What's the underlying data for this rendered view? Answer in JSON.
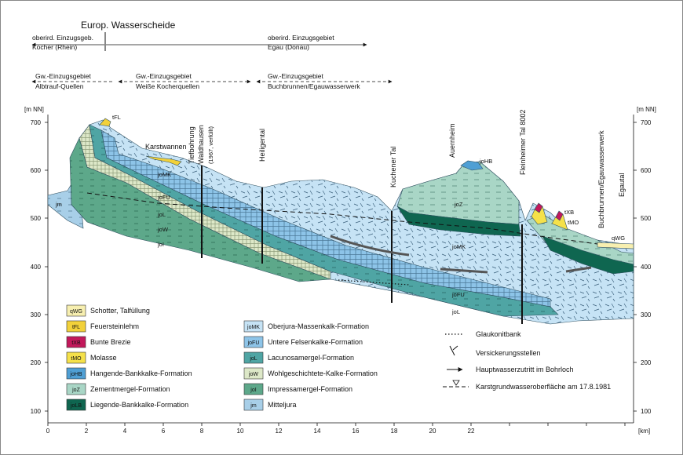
{
  "header": {
    "watershed_title": "Europ. Wasserscheide",
    "surface_left_1": "oberird. Einzugsgeb.",
    "surface_left_2": "Kocher (Rhein)",
    "surface_right_1": "oberird. Einzugsgebiet",
    "surface_right_2": "Egau (Donau)",
    "gw1_1": "Gw.-Einzugsgebiet",
    "gw1_2": "Albtrauf-Quellen",
    "gw2_1": "Gw.-Einzugsgebiet",
    "gw2_2": "Weiße Kocherquellen",
    "gw3_1": "Gw.-Einzugsgebiet",
    "gw3_2": "Buchbrunnen/Egauwasserwerk"
  },
  "axes": {
    "unit_left": "[m NN]",
    "unit_right": "[m NN]",
    "unit_x": "[km]",
    "y_ticks": [
      "700",
      "600",
      "500",
      "400",
      "300",
      "200",
      "100"
    ],
    "x_ticks": [
      "0",
      "2",
      "4",
      "6",
      "8",
      "10",
      "12",
      "14",
      "16",
      "18",
      "20",
      "22"
    ]
  },
  "sites": {
    "karstwannen": "Karstwannen",
    "tiefbohrung_1": "Tiefbohrung",
    "tiefbohrung_2": "Waldhausen",
    "tiefbohrung_3": "(1967, verfüllt)",
    "heiligental": "Heiligental",
    "kuchener": "Kuchener Tal",
    "auernheim": "Auernheim",
    "fleinheimer": "Fleinheimer Tal 8002",
    "buchbrunnen": "Buchbrunnen/Egauwasserwerk",
    "egautal": "Egautal"
  },
  "unit_labels": {
    "tFL": "tFL",
    "jm": "jm",
    "joMK1": "joMK",
    "joFU1": "joFU",
    "joL1": "joL",
    "joW1": "joW",
    "joI1": "joI",
    "joHB": "joHB",
    "joZ": "joZ",
    "joMK2": "joMK",
    "joFU2": "joFU",
    "joL2": "joL",
    "tXB": "tXB",
    "tMO": "tMO",
    "qWG": "qWG"
  },
  "legend": [
    {
      "code": "qWG",
      "label": "Schotter, Talfüllung",
      "color": "#f7efb0",
      "text": "#111"
    },
    {
      "code": "tFL",
      "label": "Feuersteinlehm",
      "color": "#f2d13a",
      "text": "#111"
    },
    {
      "code": "tXB",
      "label": "Bunte Brezie",
      "color": "#c2185b",
      "text": "#111"
    },
    {
      "code": "tMO",
      "label": "Molasse",
      "color": "#f5e14a",
      "text": "#111"
    },
    {
      "code": "joHB",
      "label": "Hangende-Bankkalke-Formation",
      "color": "#4f9fd4",
      "text": "#111"
    },
    {
      "code": "joZ",
      "label": "Zementmergel-Formation",
      "color": "#a9d6c6",
      "text": "#111"
    },
    {
      "code": "joLB",
      "label": "Liegende-Bankkalke-Formation",
      "color": "#0f6650",
      "text": "#111"
    },
    {
      "code": "joMK",
      "label": "Oberjura-Massenkalk-Formation",
      "color": "#c6e3f5",
      "text": "#111"
    },
    {
      "code": "joFU",
      "label": "Untere Felsenkalke-Formation",
      "color": "#8dc4e8",
      "text": "#111"
    },
    {
      "code": "joL",
      "label": "Lacunosamergel-Formation",
      "color": "#4fa5a4",
      "text": "#111"
    },
    {
      "code": "joW",
      "label": "Wohlgeschichtete-Kalke-Formation",
      "color": "#dde8c8",
      "text": "#111"
    },
    {
      "code": "joI",
      "label": "Impressamergel-Formation",
      "color": "#5da88a",
      "text": "#111"
    },
    {
      "code": "jm",
      "label": "Mitteljura",
      "color": "#a8cfe8",
      "text": "#111"
    }
  ],
  "symbols": [
    {
      "key": "glaukonit",
      "label": "Glaukonitbank"
    },
    {
      "key": "versickerung",
      "label": "Versickerungsstellen"
    },
    {
      "key": "hauptwasser",
      "label": "Hauptwasserzutritt im Bohrloch"
    },
    {
      "key": "karstgw",
      "label": "Karstgrundwasseroberfläche am 17.8.1981"
    }
  ],
  "colors": {
    "joMK": "#c6e3f5",
    "joFU": "#8dc4e8",
    "joL": "#4fa5a4",
    "joW": "#dde8c8",
    "joI": "#5da88a",
    "joZ": "#a9d6c6",
    "joLB": "#0f6650",
    "joHB": "#4f9fd4",
    "jm": "#a8cfe8",
    "tFL": "#f2d13a",
    "tXB": "#c2185b",
    "tMO": "#f5e14a",
    "qWG": "#f7efb0"
  }
}
